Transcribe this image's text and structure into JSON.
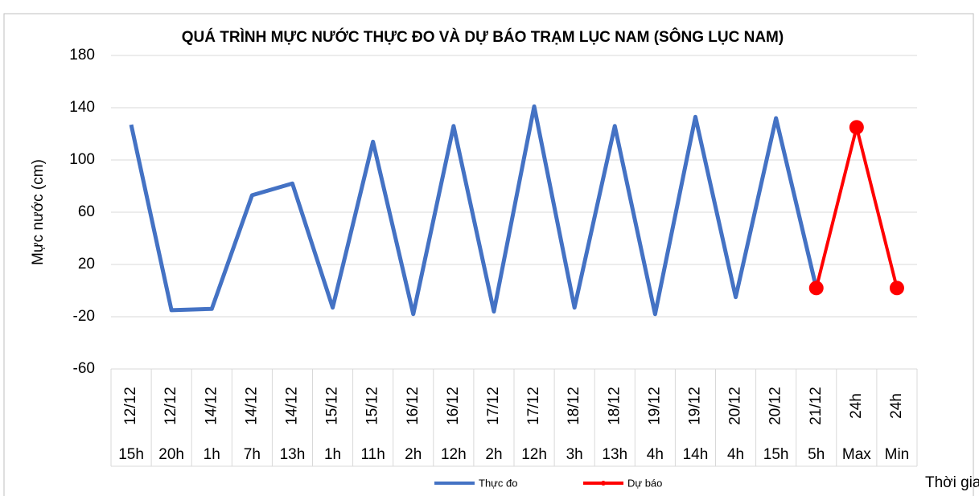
{
  "chart_data": {
    "type": "line",
    "title": "QUÁ TRÌNH MỰC NƯỚC THỰC ĐO VÀ DỰ BÁO TRẠM LỤC NAM (SÔNG LỤC NAM)",
    "y_label": "Mực nước (cm)",
    "x_label": "Thời gian",
    "category_groups": [
      "12/12",
      "12/12",
      "14/12",
      "14/12",
      "14/12",
      "15/12",
      "15/12",
      "16/12",
      "16/12",
      "17/12",
      "17/12",
      "18/12",
      "18/12",
      "19/12",
      "19/12",
      "20/12",
      "20/12",
      "21/12",
      "24h",
      "24h"
    ],
    "categories": [
      "15h",
      "20h",
      "1h",
      "7h",
      "13h",
      "1h",
      "11h",
      "2h",
      "12h",
      "2h",
      "12h",
      "3h",
      "13h",
      "4h",
      "14h",
      "4h",
      "15h",
      "5h",
      "Max",
      "Min"
    ],
    "series": [
      {
        "name": "Thực đo",
        "color": "#4472c4",
        "markers": false,
        "values": [
          127,
          -15,
          -14,
          73,
          82,
          -13,
          114,
          -18,
          126,
          -16,
          141,
          -13,
          126,
          -18,
          133,
          -5,
          132,
          2,
          null,
          null
        ]
      },
      {
        "name": "Dự báo",
        "color": "#ff0000",
        "markers": true,
        "values": [
          null,
          null,
          null,
          null,
          null,
          null,
          null,
          null,
          null,
          null,
          null,
          null,
          null,
          null,
          null,
          null,
          null,
          2,
          125,
          2
        ]
      }
    ],
    "ylim": [
      -60,
      180
    ],
    "yticks": [
      -60,
      -20,
      20,
      60,
      100,
      140,
      180
    ],
    "grid": true,
    "legend": "bottom"
  }
}
